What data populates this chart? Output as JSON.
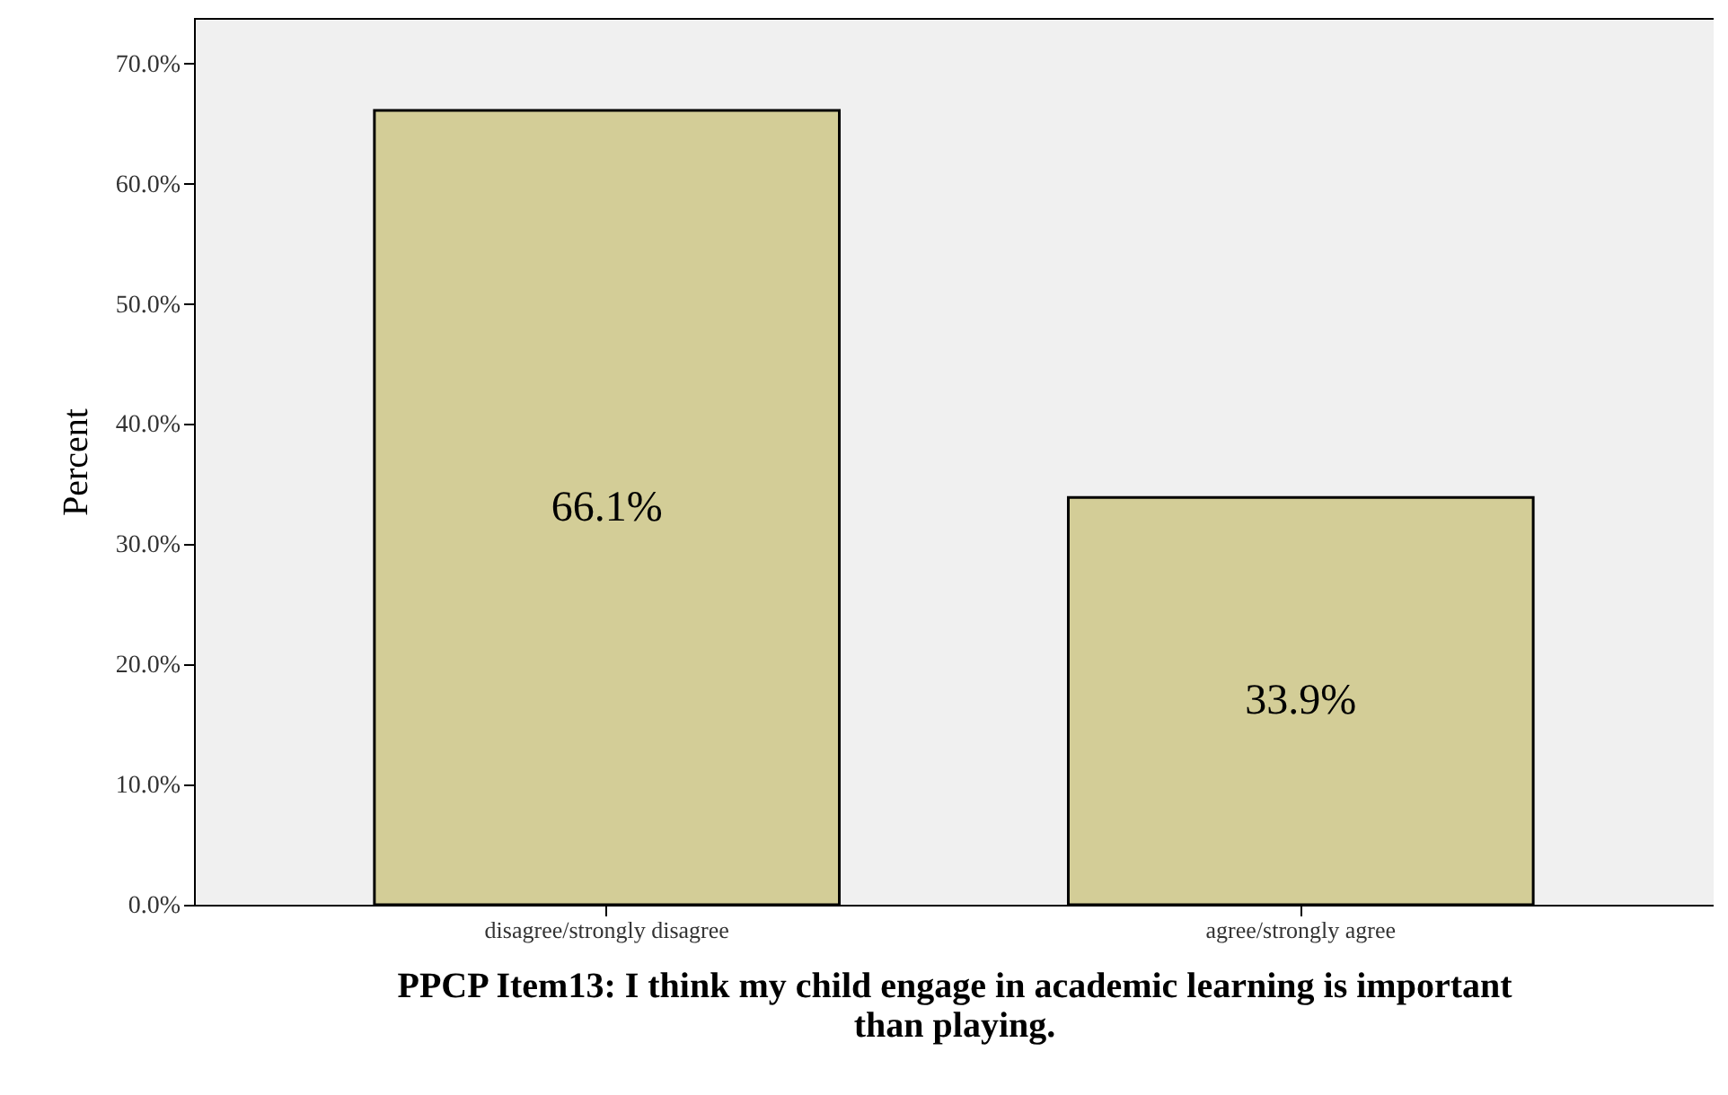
{
  "chart_data": {
    "type": "bar",
    "xlabel": "PPCP Item13: I think my child engage in academic learning is important than playing.",
    "ylabel": "Percent",
    "categories": [
      "disagree/strongly disagree",
      "agree/strongly agree"
    ],
    "values": [
      66.1,
      33.9
    ],
    "value_labels": [
      "66.1%",
      "33.9%"
    ],
    "color": "#d3cd97",
    "ylim": [
      0,
      73.8
    ],
    "yticks": [
      {
        "value": 0,
        "label": "0.0%"
      },
      {
        "value": 10,
        "label": "10.0%"
      },
      {
        "value": 20,
        "label": "20.0%"
      },
      {
        "value": 30,
        "label": "30.0%"
      },
      {
        "value": 40,
        "label": "40.0%"
      },
      {
        "value": 50,
        "label": "50.0%"
      },
      {
        "value": 60,
        "label": "60.0%"
      },
      {
        "value": 70,
        "label": "70.0%"
      }
    ],
    "grid": false
  }
}
